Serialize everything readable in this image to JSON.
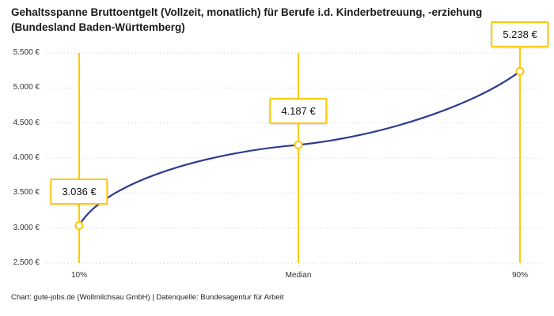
{
  "title": "Gehaltsspanne Bruttoentgelt (Vollzeit, monatlich) für Berufe i.d. Kinderbetreuung, -erziehung (Bundesland Baden-Württemberg)",
  "footer": "Chart: gute-jobs.de (Wollmilchsau GmbH) | Datenquelle: Bundesagentur für Arbeit",
  "colors": {
    "accent_yellow": "#FFC907",
    "line_blue": "#2B3A8F",
    "grid": "#D9D9D9",
    "text": "#1A1A1A",
    "marker_fill": "#FFFFFF"
  },
  "chart_data": {
    "type": "line",
    "categories": [
      "10%",
      "Median",
      "90%"
    ],
    "values": [
      3036,
      4187,
      5238
    ],
    "point_labels": [
      "3.036 €",
      "4.187 €",
      "5.238 €"
    ],
    "ylim": [
      2500,
      5500
    ],
    "y_ticks": [
      5500,
      5000,
      4500,
      4000,
      3500,
      3000,
      2500
    ],
    "y_tick_labels": [
      "5.500 €",
      "5.000 €",
      "4.500 €",
      "4.000 €",
      "3.500 €",
      "3.000 €",
      "2.500 €"
    ],
    "xlabel": "",
    "ylabel": "",
    "grid": "horizontal-dotted",
    "legend": "none",
    "title": "Gehaltsspanne Bruttoentgelt (Vollzeit, monatlich) für Berufe i.d. Kinderbetreuung, -erziehung (Bundesland Baden-Württemberg)"
  }
}
